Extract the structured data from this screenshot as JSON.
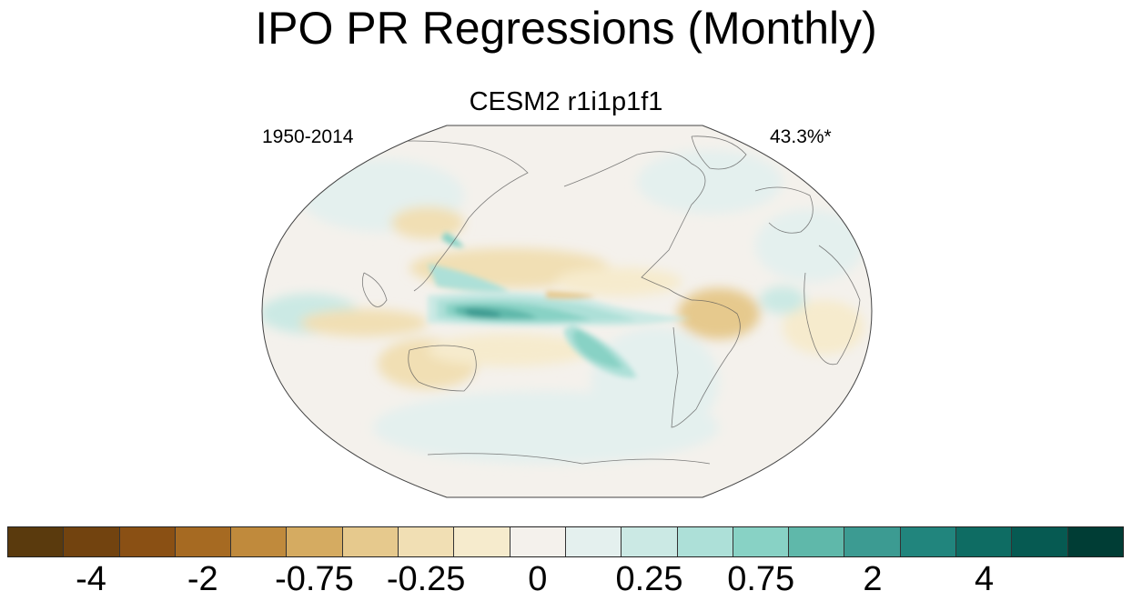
{
  "title": "IPO PR Regressions (Monthly)",
  "panel": {
    "subtitle": "CESM2 r1i1p1f1",
    "left_label": "1950-2014",
    "right_label": "43.3%*",
    "variable": "PR",
    "projection": "Robinson, centered on Pacific (~180°)"
  },
  "colorbar": {
    "colors": [
      "#5a3a0d",
      "#72430f",
      "#8a5014",
      "#a66a22",
      "#c08a3c",
      "#d5ab61",
      "#e6c98d",
      "#f1dfb4",
      "#f6ebcd",
      "#f4f1ec",
      "#e4f0ee",
      "#cbe9e4",
      "#ade0d8",
      "#88d2c5",
      "#5fb8aa",
      "#3c9b92",
      "#21857d",
      "#0e6c63",
      "#065a52",
      "#003d35"
    ],
    "tick_labels": [
      "-4",
      "-2",
      "-0.75",
      "-0.25",
      "0",
      "0.25",
      "0.75",
      "2",
      "4"
    ],
    "tick_boundary_indices": [
      2,
      4,
      6,
      8,
      10,
      12,
      14,
      16,
      18
    ]
  },
  "chart_data": {
    "type": "heatmap",
    "title": "IPO PR Regressions (Monthly)",
    "subtitle": "CESM2 r1i1p1f1",
    "period": "1950-2014",
    "explained_variance": "43.3%*",
    "colorbar_levels": [
      "-4",
      "-2",
      "-0.75",
      "-0.25",
      "0",
      "0.25",
      "0.75",
      "2",
      "4"
    ],
    "patterns": [
      {
        "region": "central/western equatorial Pacific",
        "sign": "positive",
        "approx_value": "2 to 4"
      },
      {
        "region": "tropical Pacific near-equatorial band",
        "sign": "positive",
        "approx_value": "0.75 to 2"
      },
      {
        "region": "north-central Pacific subtropics",
        "sign": "negative",
        "approx_value": "-0.25 to -0.75"
      },
      {
        "region": "western tropical Indian Ocean",
        "sign": "positive",
        "approx_value": "0.25 to 0.75"
      },
      {
        "region": "Maritime Continent / South Pacific convergence edge",
        "sign": "negative",
        "approx_value": "-0.25 to -0.75"
      },
      {
        "region": "northern South America",
        "sign": "negative",
        "approx_value": "-0.25 to -0.75"
      }
    ]
  }
}
